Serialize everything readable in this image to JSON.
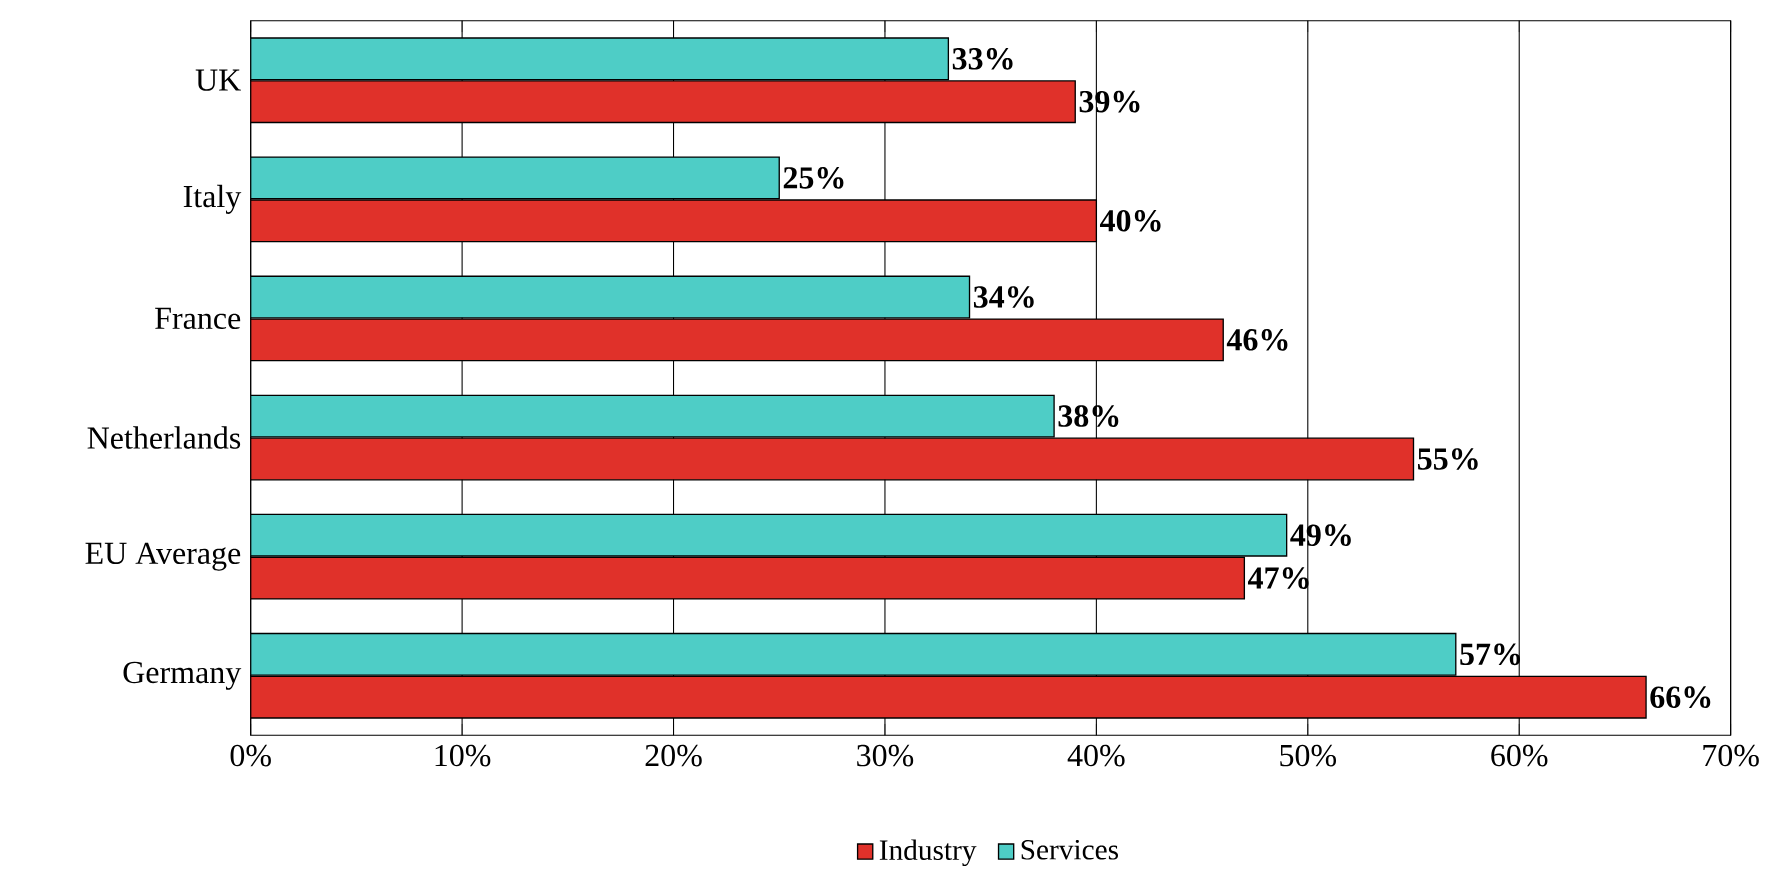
{
  "chart_data": {
    "type": "bar",
    "orientation": "horizontal",
    "categories": [
      "UK",
      "Italy",
      "France",
      "Netherlands",
      "EU Average",
      "Germany"
    ],
    "series": [
      {
        "name": "Industry",
        "color": "#e0312a",
        "values": [
          39,
          40,
          46,
          55,
          47,
          66
        ],
        "value_labels": [
          "39%",
          "40%",
          "46%",
          "55%",
          "47%",
          "66%"
        ]
      },
      {
        "name": "Services",
        "color": "#4ecdc6",
        "values": [
          33,
          25,
          34,
          38,
          49,
          57
        ],
        "value_labels": [
          "33%",
          "25%",
          "34%",
          "38%",
          "49%",
          "57%"
        ]
      }
    ],
    "xlim": [
      0,
      70
    ],
    "xticks": [
      {
        "value": 0,
        "label": "0%"
      },
      {
        "value": 10,
        "label": "10%"
      },
      {
        "value": 20,
        "label": "20%"
      },
      {
        "value": 30,
        "label": "30%"
      },
      {
        "value": 40,
        "label": "40%"
      },
      {
        "value": 50,
        "label": "50%"
      },
      {
        "value": 60,
        "label": "60%"
      },
      {
        "value": 70,
        "label": "70%"
      }
    ],
    "grid": "x",
    "legend": "bottom"
  }
}
